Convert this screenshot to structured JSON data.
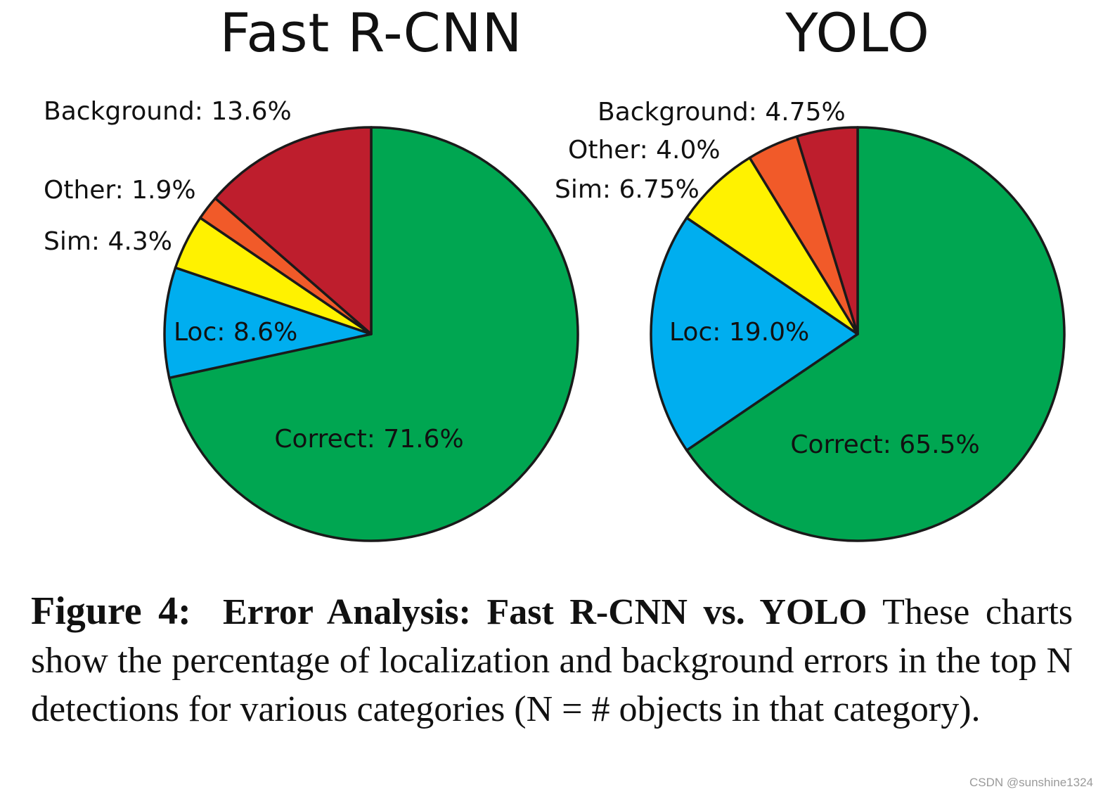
{
  "chart_data": [
    {
      "type": "pie",
      "title": "Fast R-CNN",
      "slices": [
        {
          "name": "Correct",
          "value": 71.6,
          "label": "Correct: 71.6%",
          "color": "#00a651"
        },
        {
          "name": "Loc",
          "value": 8.6,
          "label": "Loc: 8.6%",
          "color": "#00aeef"
        },
        {
          "name": "Sim",
          "value": 4.3,
          "label": "Sim: 4.3%",
          "color": "#fff200"
        },
        {
          "name": "Other",
          "value": 1.9,
          "label": "Other: 1.9%",
          "color": "#f15a29"
        },
        {
          "name": "Background",
          "value": 13.6,
          "label": "Background: 13.6%",
          "color": "#be1e2d"
        }
      ]
    },
    {
      "type": "pie",
      "title": "YOLO",
      "slices": [
        {
          "name": "Correct",
          "value": 65.5,
          "label": "Correct: 65.5%",
          "color": "#00a651"
        },
        {
          "name": "Loc",
          "value": 19.0,
          "label": "Loc: 19.0%",
          "color": "#00aeef"
        },
        {
          "name": "Sim",
          "value": 6.75,
          "label": "Sim: 6.75%",
          "color": "#fff200"
        },
        {
          "name": "Other",
          "value": 4.0,
          "label": "Other: 4.0%",
          "color": "#f15a29"
        },
        {
          "name": "Background",
          "value": 4.75,
          "label": "Background: 4.75%",
          "color": "#be1e2d"
        }
      ]
    }
  ],
  "caption": {
    "figure_label": "Figure 4:",
    "bold_title": "Error Analysis: Fast R-CNN vs. YOLO",
    "body": "These charts show the percentage of localization and background errors in the top N detections for various categories (N = # objects in that category)."
  },
  "watermark": "CSDN @sunshine1324"
}
